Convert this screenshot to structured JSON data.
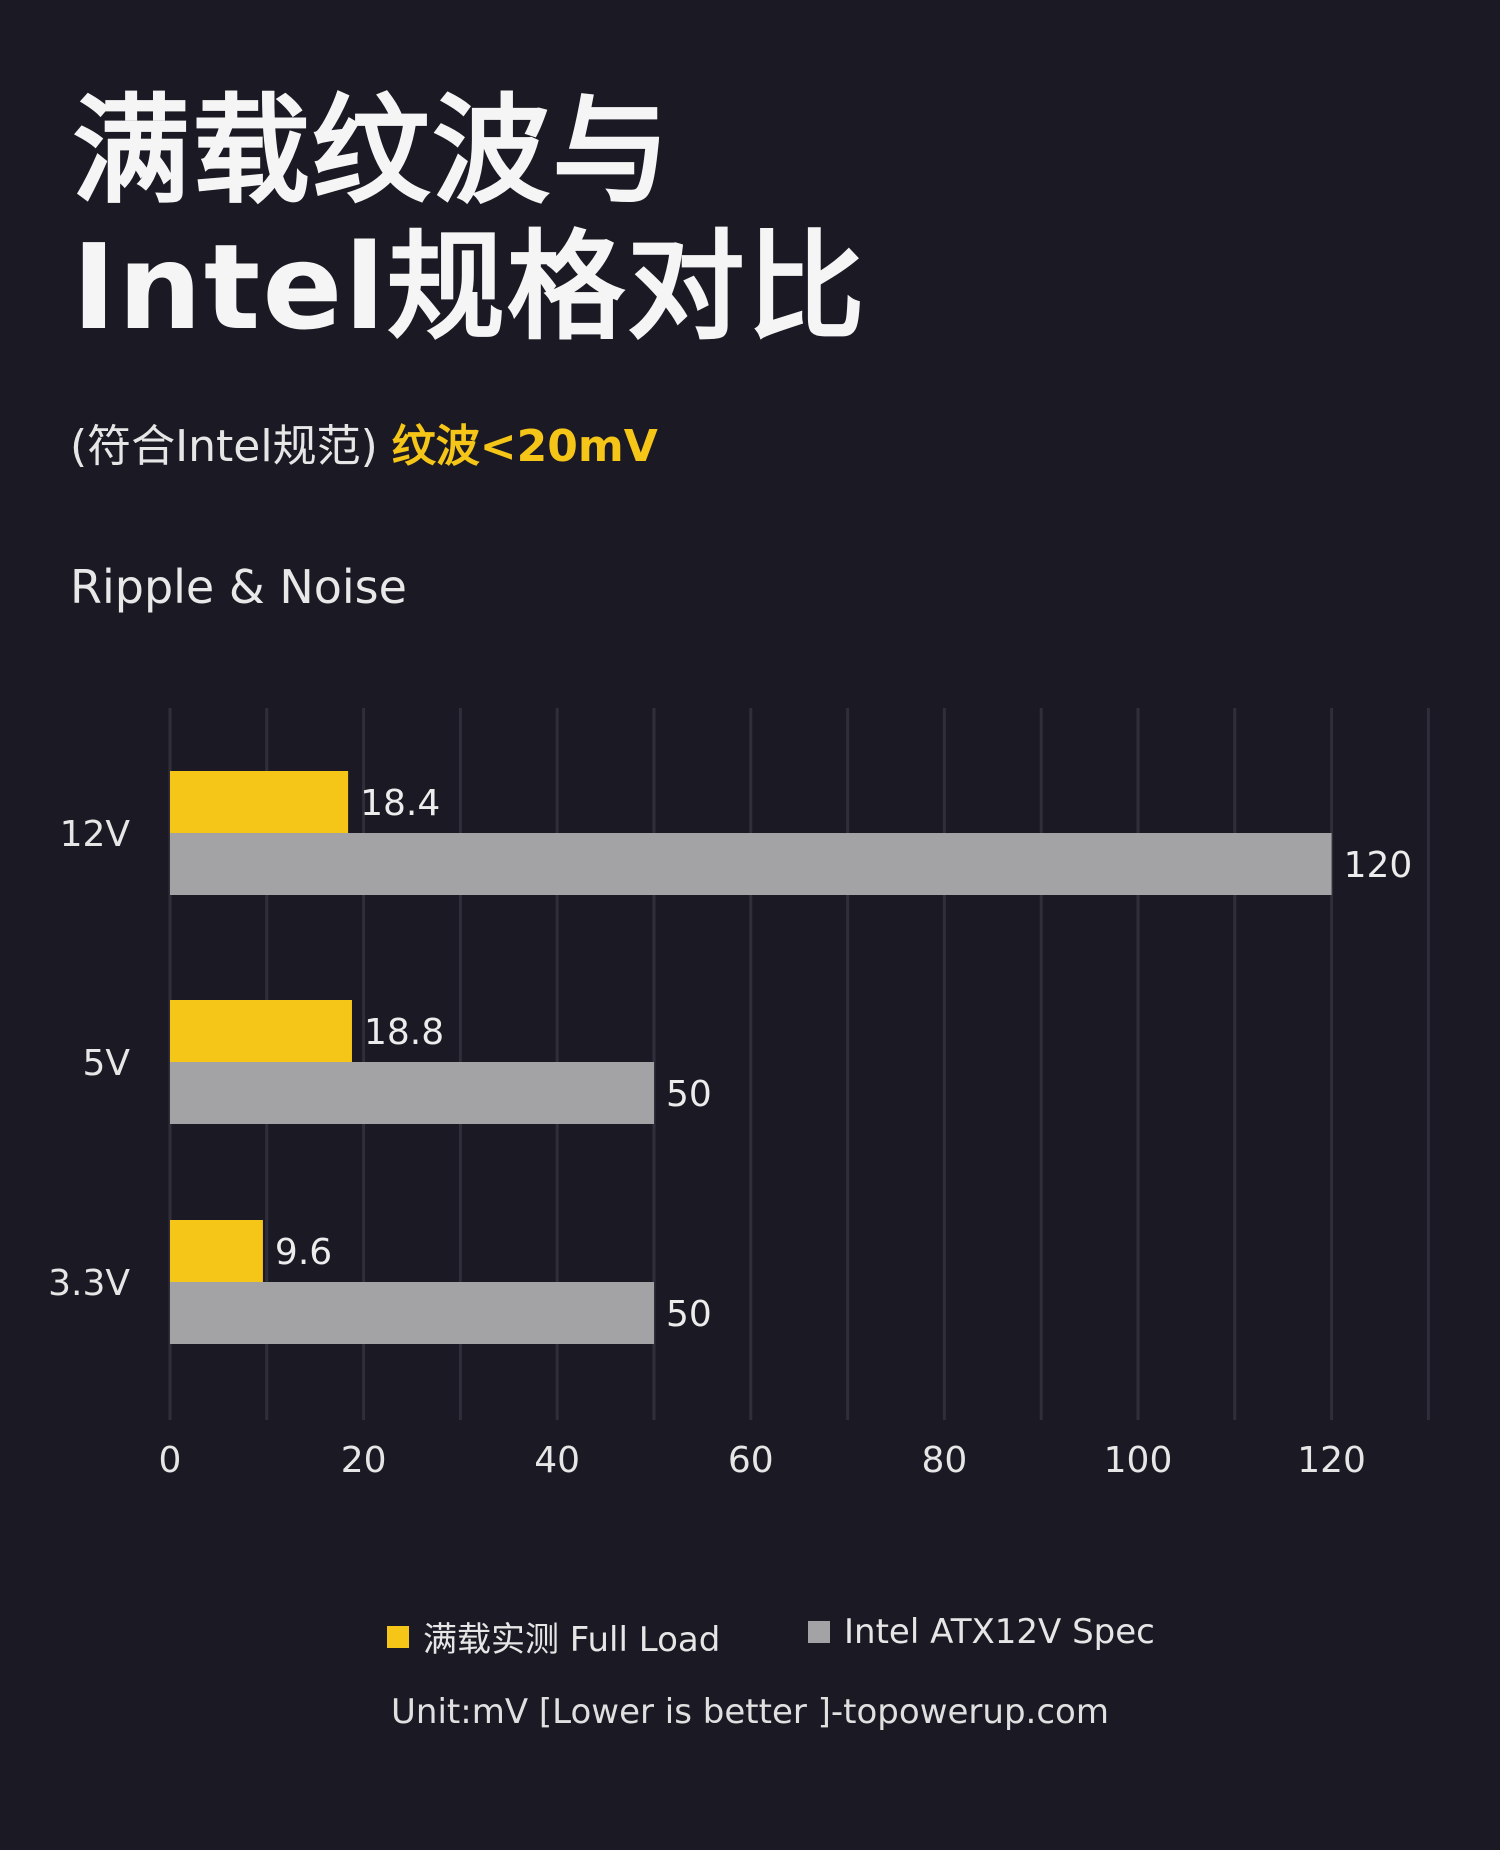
{
  "header": {
    "title_line1": "满载纹波与",
    "title_line2": "Intel规格对比",
    "subtitle_prefix": "(符合Intel规范)",
    "subtitle_highlight": "纹波<20mV"
  },
  "colors": {
    "background": "#1b1a24",
    "full_load": "#f5c518",
    "intel_spec": "#a3a3a6",
    "gridline": "#2f2e3a",
    "accent": "#f5c518"
  },
  "chart_data": {
    "type": "bar",
    "orientation": "horizontal",
    "title": "Ripple & Noise",
    "categories": [
      "12V",
      "5V",
      "3.3V"
    ],
    "series": [
      {
        "name": "满载实测 Full Load",
        "values": [
          18.4,
          18.8,
          9.6
        ]
      },
      {
        "name": "Intel ATX12V Spec",
        "values": [
          120,
          50,
          50
        ]
      }
    ],
    "data_labels": [
      [
        "18.4",
        "18.8",
        "9.6"
      ],
      [
        "120",
        "50",
        "50"
      ]
    ],
    "xticks": [
      "0",
      "20",
      "40",
      "60",
      "80",
      "100",
      "120"
    ],
    "xlim": [
      0,
      130
    ],
    "grid": true,
    "legend_position": "bottom-center"
  },
  "footnote": "Unit:mV [Lower is better ]-topowerup.com"
}
